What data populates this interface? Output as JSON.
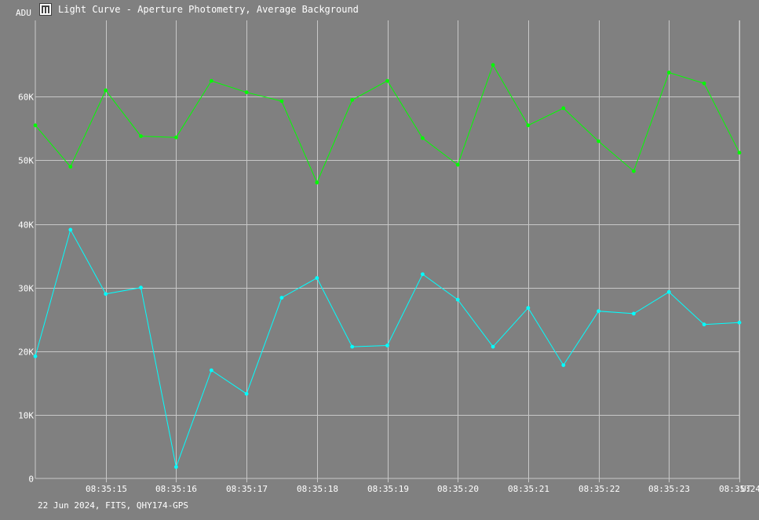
{
  "window": {
    "title": "Light Curve - Aperture Photometry, Average Background",
    "icon": "light-curve-icon"
  },
  "footer": {
    "info": "22 Jun 2024, FITS, QHY174-GPS"
  },
  "chart_data": {
    "type": "line",
    "ylabel": "ADU",
    "xlabel": "UT",
    "ylim": [
      0,
      72000
    ],
    "xlim": [
      0,
      10
    ],
    "x_tick_labels": [
      "08:35:15",
      "08:35:16",
      "08:35:17",
      "08:35:18",
      "08:35:19",
      "08:35:20",
      "08:35:21",
      "08:35:22",
      "08:35:23",
      "08:35:24"
    ],
    "y_tick_labels": [
      "0",
      "10K",
      "20K",
      "30K",
      "40K",
      "50K",
      "60K"
    ],
    "grid": true,
    "x": [
      0,
      0.5,
      1,
      1.5,
      2,
      2.5,
      3,
      3.5,
      4,
      4.5,
      5,
      5.5,
      6,
      6.5,
      7,
      7.5,
      8,
      8.5,
      9,
      9.5,
      10
    ],
    "series": [
      {
        "color": "#00ff00",
        "values": [
          55500,
          49000,
          61000,
          53800,
          53600,
          62500,
          60700,
          59300,
          46500,
          59500,
          62500,
          53500,
          49300,
          65000,
          55500,
          58200,
          53000,
          48300,
          63800,
          62100,
          51200
        ]
      },
      {
        "color": "#00ffff",
        "values": [
          19200,
          39100,
          29000,
          30000,
          1800,
          17000,
          13300,
          28400,
          31500,
          20700,
          20900,
          32100,
          28100,
          20700,
          26800,
          17800,
          26300,
          25900,
          29300,
          24200,
          24500
        ]
      }
    ]
  }
}
